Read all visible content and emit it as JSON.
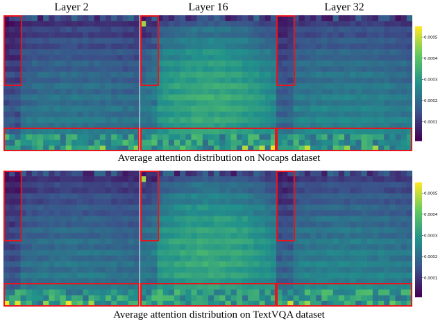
{
  "column_titles": [
    "Layer 2",
    "Layer 16",
    "Layer 32"
  ],
  "captions": [
    "Average attention distribution on Nocaps dataset",
    "Average attention distribution on TextVQA dataset"
  ],
  "colormap": [
    "#440154",
    "#3b528b",
    "#21918c",
    "#5ec962",
    "#fde725"
  ],
  "highlight_color": "#e8141c",
  "chart_data": [
    {
      "type": "heatmap",
      "title": "Average attention distribution on Nocaps dataset",
      "panels": [
        "Layer 2",
        "Layer 16",
        "Layer 32"
      ],
      "grid": [
        24,
        24
      ],
      "colorbar": {
        "ticks": [
          "0.0001",
          "0.0002",
          "0.0003",
          "0.0004",
          "0.0005"
        ],
        "range": [
          1e-05,
          0.00055
        ]
      },
      "highlight_boxes": [
        "left image-token columns",
        "bottom instruction-token rows"
      ]
    },
    {
      "type": "heatmap",
      "title": "Average attention distribution on TextVQA dataset",
      "panels": [
        "Layer 2",
        "Layer 16",
        "Layer 32"
      ],
      "grid": [
        24,
        24
      ],
      "colorbar": {
        "ticks": [
          "0.0001",
          "0.0002",
          "0.0003",
          "0.0004",
          "0.0005"
        ],
        "range": [
          1e-05,
          0.00055
        ]
      },
      "highlight_boxes": [
        "left image-token columns",
        "bottom instruction-token rows"
      ]
    }
  ]
}
